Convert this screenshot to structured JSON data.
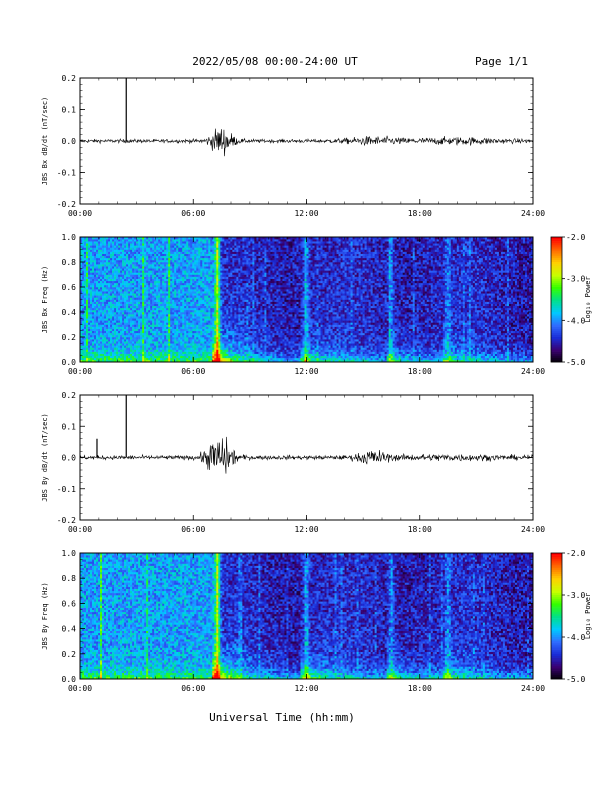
{
  "header": {
    "title": "2022/05/08  00:00-24:00 UT",
    "page": "Page 1/1"
  },
  "xaxis": {
    "label": "Universal Time (hh:mm)",
    "range": [
      0,
      24
    ],
    "ticks": [
      0,
      6,
      12,
      18,
      24
    ],
    "tick_labels": [
      "00:00",
      "06:00",
      "12:00",
      "18:00",
      "24:00"
    ]
  },
  "colorbar": {
    "label": "Log₁₀ Power",
    "range": [
      -5.0,
      -2.0
    ],
    "tick_labels": [
      "-2.0",
      "-3.0",
      "-4.0",
      "-5.0"
    ],
    "tick_values": [
      -2.0,
      -3.0,
      -4.0,
      -5.0
    ],
    "colors": [
      "#000000",
      "#3a0070",
      "#1a2bd6",
      "#2f6cff",
      "#00c8ff",
      "#00e08a",
      "#33ff00",
      "#c8ff00",
      "#ffd000",
      "#ff6a00",
      "#ff0000"
    ]
  },
  "chart_data": [
    {
      "type": "line",
      "ylabel": "JBS Bx dB/dt (nT/sec)",
      "ylim": [
        -0.2,
        0.2
      ],
      "ytick_labels": [
        "0.2",
        "0.1",
        "0.0",
        "-0.1",
        "-0.2"
      ],
      "ytick_values": [
        0.2,
        0.1,
        0.0,
        -0.1,
        -0.2
      ],
      "spikes": [
        {
          "t": 2.45,
          "v": 0.2
        }
      ],
      "activity": [
        {
          "t": 7.5,
          "amp": 0.045,
          "width": 0.6
        },
        {
          "t": 15.5,
          "amp": 0.01,
          "width": 1.5
        },
        {
          "t": 20.0,
          "amp": 0.008,
          "width": 2.5
        }
      ],
      "baseline_noise": 0.006
    },
    {
      "type": "heatmap",
      "ylabel": "JBS Bx Freq (Hz)",
      "ylim": [
        0.0,
        1.0
      ],
      "ytick_labels": [
        "1.0",
        "0.8",
        "0.6",
        "0.4",
        "0.2",
        "0.0"
      ],
      "ytick_values": [
        1.0,
        0.8,
        0.6,
        0.4,
        0.2,
        0.0
      ],
      "zlim": [
        -5.0,
        -2.0
      ],
      "events": [
        {
          "t": 7.3,
          "strength": 1.0
        },
        {
          "t": 12.0,
          "strength": 0.5
        },
        {
          "t": 16.5,
          "strength": 0.4
        },
        {
          "t": 19.5,
          "strength": 0.35
        }
      ]
    },
    {
      "type": "line",
      "ylabel": "JBS By dB/dt (nT/sec)",
      "ylim": [
        -0.2,
        0.2
      ],
      "ytick_labels": [
        "0.2",
        "0.1",
        "0.0",
        "-0.1",
        "-0.2"
      ],
      "ytick_values": [
        0.2,
        0.1,
        0.0,
        -0.1,
        -0.2
      ],
      "spikes": [
        {
          "t": 2.45,
          "v": 0.2
        },
        {
          "t": 0.9,
          "v": 0.06
        }
      ],
      "activity": [
        {
          "t": 7.4,
          "amp": 0.07,
          "width": 0.7
        },
        {
          "t": 15.5,
          "amp": 0.02,
          "width": 0.8
        },
        {
          "t": 19.5,
          "amp": 0.006,
          "width": 3.0
        }
      ],
      "baseline_noise": 0.007
    },
    {
      "type": "heatmap",
      "ylabel": "JBS By Freq (Hz)",
      "ylim": [
        0.0,
        1.0
      ],
      "ytick_labels": [
        "1.0",
        "0.8",
        "0.6",
        "0.4",
        "0.2",
        "0.0"
      ],
      "ytick_values": [
        1.0,
        0.8,
        0.6,
        0.4,
        0.2,
        0.0
      ],
      "zlim": [
        -5.0,
        -2.0
      ],
      "events": [
        {
          "t": 7.3,
          "strength": 1.0
        },
        {
          "t": 12.0,
          "strength": 0.55
        },
        {
          "t": 16.5,
          "strength": 0.45
        },
        {
          "t": 19.5,
          "strength": 0.4
        }
      ]
    }
  ]
}
